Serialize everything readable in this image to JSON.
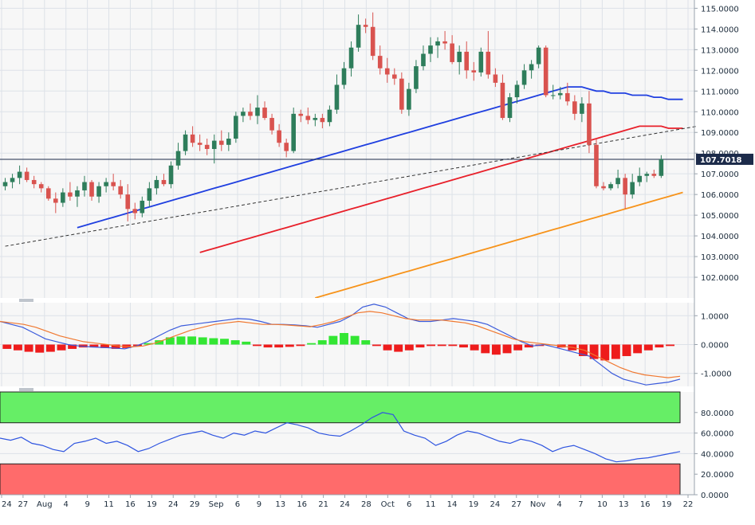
{
  "colors": {
    "background": "#f7f7f7",
    "grid": "#dde2e8",
    "up_candle": "#2e7d5b",
    "down_candle": "#d9534f",
    "ma_fast": "#1f3fe0",
    "ma_mid": "#e8202a",
    "ma_slow": "#f7931a",
    "trendline": "#333333",
    "last_price": "#1c2b4a",
    "macd_line": "#3b5bdb",
    "signal_line": "#f07830",
    "hist_pos": "#33e633",
    "hist_neg": "#ee1c1c",
    "rsi_line": "#2f55e0",
    "overbought": "#66ee66",
    "oversold": "#ff6b6b"
  },
  "chart_data": [
    {
      "type": "candlestick",
      "ylim": [
        101,
        115.4
      ],
      "y_ticks": [
        "115.0000",
        "114.0000",
        "113.0000",
        "112.0000",
        "111.0000",
        "110.0000",
        "109.0000",
        "108.0000",
        "107.0000",
        "106.0000",
        "105.0000",
        "104.0000",
        "103.0000",
        "102.0000"
      ],
      "last_price": "107.7018",
      "ohlc": [
        [
          106.4,
          106.8,
          106.2,
          106.6
        ],
        [
          106.6,
          107.0,
          106.3,
          106.8
        ],
        [
          106.8,
          107.4,
          106.5,
          107.1
        ],
        [
          107.1,
          107.3,
          106.6,
          106.7
        ],
        [
          106.7,
          106.9,
          106.3,
          106.5
        ],
        [
          106.5,
          106.6,
          106.1,
          106.3
        ],
        [
          106.3,
          106.4,
          105.7,
          105.8
        ],
        [
          105.8,
          106.1,
          105.1,
          105.6
        ],
        [
          105.6,
          106.3,
          105.4,
          106.1
        ],
        [
          106.1,
          106.6,
          105.7,
          105.9
        ],
        [
          105.9,
          106.4,
          105.4,
          106.2
        ],
        [
          106.2,
          106.9,
          105.9,
          106.6
        ],
        [
          106.6,
          106.7,
          105.7,
          105.9
        ],
        [
          105.9,
          106.6,
          105.6,
          106.4
        ],
        [
          106.4,
          106.8,
          106.1,
          106.6
        ],
        [
          106.6,
          107.0,
          106.2,
          106.4
        ],
        [
          106.4,
          106.7,
          105.8,
          106.0
        ],
        [
          106.0,
          106.5,
          104.7,
          105.3
        ],
        [
          105.3,
          105.6,
          104.8,
          105.1
        ],
        [
          105.1,
          105.9,
          104.9,
          105.7
        ],
        [
          105.7,
          106.6,
          105.4,
          106.3
        ],
        [
          106.3,
          106.9,
          106.0,
          106.7
        ],
        [
          106.7,
          107.0,
          106.4,
          106.5
        ],
        [
          106.5,
          107.6,
          106.3,
          107.4
        ],
        [
          107.4,
          108.5,
          107.2,
          108.1
        ],
        [
          108.1,
          109.1,
          107.9,
          108.9
        ],
        [
          108.9,
          109.3,
          108.3,
          108.5
        ],
        [
          108.5,
          108.9,
          108.1,
          108.4
        ],
        [
          108.4,
          108.7,
          107.9,
          108.2
        ],
        [
          108.2,
          108.9,
          107.5,
          108.6
        ],
        [
          108.6,
          109.1,
          108.1,
          108.4
        ],
        [
          108.4,
          109.0,
          108.1,
          108.7
        ],
        [
          108.7,
          110.0,
          108.5,
          109.8
        ],
        [
          109.8,
          110.2,
          109.5,
          110.0
        ],
        [
          110.0,
          110.4,
          109.6,
          109.8
        ],
        [
          109.8,
          110.8,
          109.4,
          110.2
        ],
        [
          110.2,
          110.5,
          109.6,
          109.7
        ],
        [
          109.7,
          109.9,
          108.9,
          109.1
        ],
        [
          109.1,
          109.4,
          108.3,
          108.5
        ],
        [
          108.5,
          108.7,
          107.8,
          108.1
        ],
        [
          108.1,
          110.2,
          108.0,
          109.9
        ],
        [
          109.9,
          110.1,
          109.5,
          109.8
        ],
        [
          109.8,
          110.2,
          109.4,
          109.6
        ],
        [
          109.6,
          109.9,
          109.3,
          109.7
        ],
        [
          109.7,
          109.9,
          109.2,
          109.5
        ],
        [
          109.5,
          110.3,
          109.3,
          110.1
        ],
        [
          110.1,
          111.8,
          109.9,
          111.3
        ],
        [
          111.3,
          112.4,
          111.1,
          112.1
        ],
        [
          112.1,
          113.4,
          111.7,
          113.1
        ],
        [
          113.1,
          114.7,
          112.9,
          114.2
        ],
        [
          114.2,
          114.5,
          113.8,
          114.1
        ],
        [
          114.1,
          114.8,
          112.5,
          112.7
        ],
        [
          112.7,
          113.2,
          111.8,
          112.1
        ],
        [
          112.1,
          112.6,
          111.4,
          111.8
        ],
        [
          111.8,
          112.1,
          111.3,
          111.6
        ],
        [
          111.6,
          111.9,
          109.9,
          110.1
        ],
        [
          110.1,
          111.4,
          109.8,
          111.1
        ],
        [
          111.1,
          112.5,
          110.9,
          112.2
        ],
        [
          112.2,
          113.2,
          112.0,
          112.8
        ],
        [
          112.8,
          113.6,
          112.4,
          113.2
        ],
        [
          113.2,
          113.6,
          112.6,
          113.4
        ],
        [
          113.4,
          113.9,
          113.0,
          113.3
        ],
        [
          113.3,
          113.7,
          112.3,
          112.4
        ],
        [
          112.4,
          113.2,
          111.8,
          112.9
        ],
        [
          112.9,
          113.4,
          111.6,
          112.0
        ],
        [
          112.0,
          112.4,
          111.5,
          111.9
        ],
        [
          111.9,
          113.1,
          111.7,
          112.9
        ],
        [
          112.9,
          113.9,
          111.6,
          111.8
        ],
        [
          111.8,
          112.1,
          111.2,
          111.4
        ],
        [
          111.4,
          111.8,
          109.6,
          109.7
        ],
        [
          109.7,
          110.9,
          109.5,
          110.7
        ],
        [
          110.7,
          111.5,
          110.4,
          111.3
        ],
        [
          111.3,
          112.3,
          111.1,
          112.0
        ],
        [
          112.0,
          112.5,
          111.6,
          112.3
        ],
        [
          112.3,
          113.2,
          112.1,
          113.1
        ],
        [
          113.1,
          113.2,
          110.7,
          110.8
        ],
        [
          110.8,
          111.3,
          110.6,
          110.8
        ],
        [
          110.8,
          111.2,
          110.6,
          110.9
        ],
        [
          110.9,
          111.4,
          110.3,
          110.5
        ],
        [
          110.5,
          110.8,
          109.6,
          109.9
        ],
        [
          109.9,
          110.7,
          109.5,
          110.4
        ],
        [
          110.4,
          111.0,
          108.0,
          108.4
        ],
        [
          108.4,
          108.7,
          106.3,
          106.4
        ],
        [
          106.4,
          106.6,
          106.2,
          106.3
        ],
        [
          106.3,
          106.6,
          106.2,
          106.5
        ],
        [
          106.5,
          107.2,
          106.3,
          106.8
        ],
        [
          106.8,
          107.0,
          105.3,
          106.0
        ],
        [
          106.0,
          107.0,
          105.8,
          106.6
        ],
        [
          106.6,
          107.3,
          106.4,
          106.9
        ],
        [
          106.9,
          107.1,
          106.6,
          107.0
        ],
        [
          107.0,
          107.2,
          106.8,
          106.9
        ],
        [
          106.9,
          107.9,
          106.8,
          107.7
        ]
      ],
      "series": [
        {
          "name": "",
          "color_key": "ma_fast",
          "values": [
            104.4,
            104.5,
            104.6,
            104.7,
            104.8,
            104.9,
            105.0,
            105.1,
            105.2,
            105.3,
            105.4,
            105.5,
            105.6,
            105.7,
            105.8,
            105.9,
            106.0,
            106.1,
            106.2,
            106.3,
            106.4,
            106.5,
            106.6,
            106.7,
            106.8,
            106.9,
            107.0,
            107.1,
            107.2,
            107.3,
            107.4,
            107.5,
            107.6,
            107.7,
            107.8,
            107.9,
            108.0,
            108.1,
            108.2,
            108.3,
            108.4,
            108.5,
            108.6,
            108.7,
            108.8,
            108.9,
            109.0,
            109.1,
            109.2,
            109.3,
            109.4,
            109.5,
            109.6,
            109.7,
            109.8,
            109.9,
            110.0,
            110.1,
            110.2,
            110.3,
            110.4,
            110.5,
            110.6,
            110.7,
            110.8,
            110.9,
            111.0,
            111.1,
            111.2,
            111.2,
            111.2,
            111.1,
            111.0,
            111.0,
            110.9,
            110.9,
            110.9,
            110.8,
            110.8,
            110.8,
            110.7,
            110.7,
            110.6,
            110.6,
            110.6
          ]
        },
        {
          "name": "",
          "color_key": "ma_mid",
          "values": [
            103.2,
            103.3,
            103.4,
            103.5,
            103.6,
            103.7,
            103.8,
            103.9,
            104.0,
            104.1,
            104.2,
            104.3,
            104.4,
            104.5,
            104.6,
            104.7,
            104.8,
            104.9,
            105.0,
            105.1,
            105.2,
            105.3,
            105.4,
            105.5,
            105.6,
            105.7,
            105.8,
            105.9,
            106.0,
            106.1,
            106.2,
            106.3,
            106.4,
            106.5,
            106.6,
            106.7,
            106.8,
            106.9,
            107.0,
            107.1,
            107.2,
            107.3,
            107.4,
            107.5,
            107.6,
            107.7,
            107.8,
            107.9,
            108.0,
            108.1,
            108.2,
            108.3,
            108.4,
            108.5,
            108.6,
            108.7,
            108.8,
            108.9,
            109.0,
            109.1,
            109.2,
            109.3,
            109.3,
            109.3,
            109.3,
            109.2,
            109.2,
            109.2
          ]
        },
        {
          "name": "",
          "color_key": "ma_slow",
          "values": [
            101.0,
            101.1,
            101.2,
            101.3,
            101.4,
            101.5,
            101.6,
            101.7,
            101.8,
            101.9,
            102.0,
            102.1,
            102.2,
            102.3,
            102.4,
            102.5,
            102.6,
            102.7,
            102.8,
            102.9,
            103.0,
            103.1,
            103.2,
            103.3,
            103.4,
            103.5,
            103.6,
            103.7,
            103.8,
            103.9,
            104.0,
            104.1,
            104.2,
            104.3,
            104.4,
            104.5,
            104.6,
            104.7,
            104.8,
            104.9,
            105.0,
            105.1,
            105.2,
            105.3,
            105.4,
            105.5,
            105.6,
            105.7,
            105.8,
            105.9,
            106.0,
            106.1
          ]
        }
      ],
      "trendline": [
        [
          0,
          103.5
        ],
        [
          96,
          109.3
        ]
      ]
    },
    {
      "type": "line",
      "ylim": [
        -1.45,
        1.45
      ],
      "y_ticks": [
        "1.0000",
        "0.0000",
        "-1.0000"
      ],
      "series": [
        {
          "name": "",
          "color_key": "macd_line",
          "values": [
            0.8,
            0.7,
            0.6,
            0.4,
            0.2,
            0.1,
            0.0,
            -0.05,
            -0.08,
            -0.1,
            -0.12,
            -0.15,
            -0.05,
            0.1,
            0.3,
            0.5,
            0.65,
            0.7,
            0.75,
            0.8,
            0.85,
            0.9,
            0.88,
            0.8,
            0.7,
            0.7,
            0.68,
            0.65,
            0.6,
            0.7,
            0.8,
            1.0,
            1.3,
            1.4,
            1.3,
            1.1,
            0.9,
            0.8,
            0.8,
            0.85,
            0.9,
            0.85,
            0.8,
            0.7,
            0.5,
            0.3,
            0.1,
            -0.05,
            0.0,
            -0.1,
            -0.2,
            -0.3,
            -0.4,
            -0.7,
            -1.0,
            -1.2,
            -1.3,
            -1.4,
            -1.35,
            -1.3,
            -1.2
          ]
        },
        {
          "name": "",
          "color_key": "signal_line",
          "values": [
            0.8,
            0.75,
            0.7,
            0.6,
            0.45,
            0.3,
            0.2,
            0.1,
            0.05,
            0.0,
            -0.05,
            -0.08,
            -0.05,
            0.05,
            0.2,
            0.35,
            0.5,
            0.6,
            0.7,
            0.75,
            0.8,
            0.75,
            0.7,
            0.7,
            0.68,
            0.65,
            0.62,
            0.7,
            0.8,
            0.95,
            1.1,
            1.15,
            1.1,
            1.0,
            0.9,
            0.85,
            0.85,
            0.85,
            0.8,
            0.75,
            0.65,
            0.5,
            0.35,
            0.2,
            0.1,
            0.05,
            0.0,
            -0.05,
            -0.1,
            -0.2,
            -0.4,
            -0.6,
            -0.8,
            -0.95,
            -1.05,
            -1.1,
            -1.15,
            -1.1
          ]
        }
      ],
      "histogram": [
        -0.15,
        -0.2,
        -0.25,
        -0.28,
        -0.25,
        -0.2,
        -0.15,
        -0.1,
        -0.1,
        -0.12,
        -0.15,
        -0.12,
        -0.05,
        0.05,
        0.15,
        0.25,
        0.28,
        0.28,
        0.25,
        0.22,
        0.2,
        0.15,
        0.1,
        -0.05,
        -0.1,
        -0.1,
        -0.08,
        -0.05,
        0.05,
        0.15,
        0.3,
        0.4,
        0.3,
        0.15,
        -0.05,
        -0.2,
        -0.25,
        -0.2,
        -0.1,
        -0.05,
        -0.05,
        -0.05,
        -0.1,
        -0.2,
        -0.3,
        -0.35,
        -0.3,
        -0.2,
        -0.1,
        -0.05,
        0.0,
        -0.1,
        -0.2,
        -0.4,
        -0.5,
        -0.55,
        -0.5,
        -0.4,
        -0.3,
        -0.2,
        -0.1,
        -0.05,
        0.0
      ]
    },
    {
      "type": "line",
      "ylim": [
        0,
        100
      ],
      "y_ticks": [
        "80.0000",
        "60.0000",
        "40.0000",
        "20.0000",
        "0.0000"
      ],
      "overbought": [
        70,
        100
      ],
      "oversold": [
        0,
        30
      ],
      "series": [
        {
          "name": "",
          "color_key": "rsi_line",
          "values": [
            55,
            53,
            56,
            50,
            48,
            44,
            42,
            50,
            52,
            55,
            50,
            52,
            48,
            42,
            45,
            50,
            54,
            58,
            60,
            62,
            58,
            55,
            60,
            58,
            62,
            60,
            65,
            70,
            68,
            65,
            60,
            58,
            57,
            62,
            68,
            75,
            80,
            78,
            62,
            58,
            55,
            48,
            52,
            58,
            62,
            60,
            56,
            52,
            50,
            54,
            52,
            48,
            42,
            46,
            48,
            44,
            40,
            35,
            32,
            33,
            35,
            36,
            38,
            40,
            42
          ]
        }
      ]
    }
  ],
  "x_ticks": [
    "24",
    "27",
    "Aug",
    "4",
    "9",
    "11",
    "16",
    "19",
    "24",
    "29",
    "Sep",
    "6",
    "9",
    "13",
    "16",
    "21",
    "24",
    "28",
    "Oct",
    "6",
    "11",
    "14",
    "19",
    "24",
    "27",
    "Nov",
    "4",
    "7",
    "10",
    "13",
    "16",
    "19",
    "22"
  ]
}
